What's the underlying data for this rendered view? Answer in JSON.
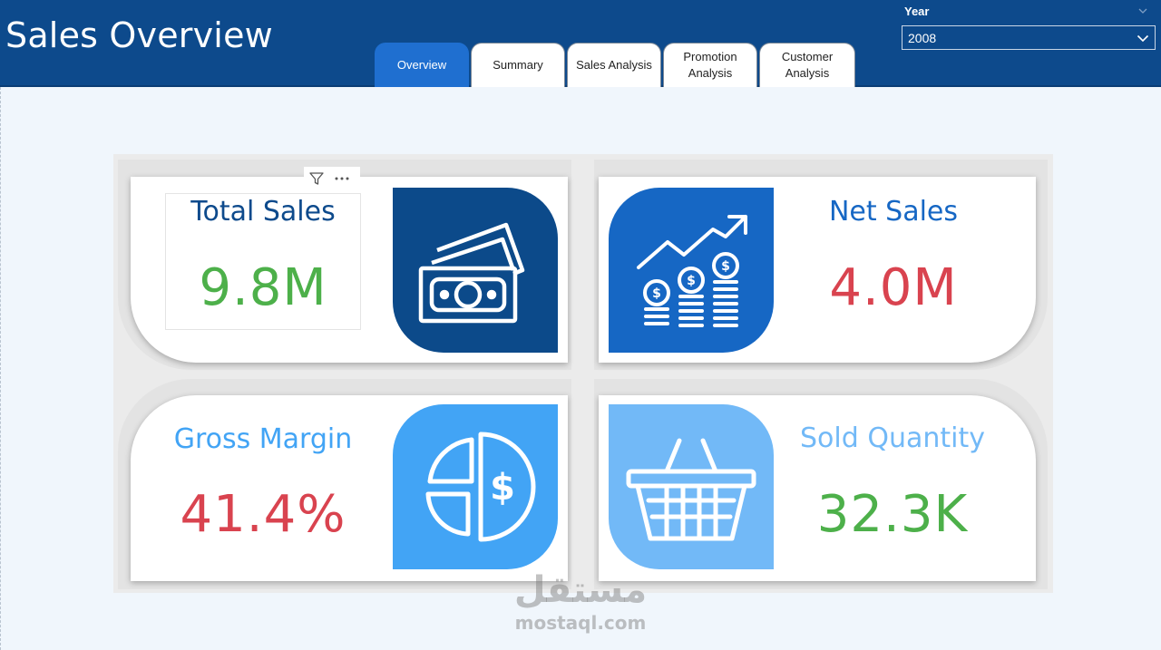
{
  "header": {
    "title": "Sales Overview",
    "tabs": [
      {
        "label": "Overview",
        "active": true
      },
      {
        "label": "Summary",
        "active": false
      },
      {
        "label": "Sales Analysis",
        "active": false
      },
      {
        "label": "Promotion\nAnalysis",
        "active": false
      },
      {
        "label": "Customer\nAnalysis",
        "active": false
      }
    ],
    "slicer": {
      "label": "Year",
      "value": "2008"
    }
  },
  "kpis": {
    "total_sales": {
      "title": "Total Sales",
      "value": "9.8M",
      "icon": "money-bills-icon"
    },
    "net_sales": {
      "title": "Net Sales",
      "value": "4.0M",
      "icon": "growth-coins-icon"
    },
    "gross_margin": {
      "title": "Gross Margin",
      "value": "41.4%",
      "icon": "pie-dollar-icon"
    },
    "sold_quantity": {
      "title": "Sold Quantity",
      "value": "32.3K",
      "icon": "basket-icon"
    }
  },
  "visual_header": {
    "filter_icon": "filter-icon",
    "more_icon": "more-options-icon"
  },
  "colors": {
    "header_bg": "#0d4a8c",
    "active_tab": "#1f6fd0",
    "title_dark": "#0d4a8c",
    "title_mid": "#1667c4",
    "title_light": "#42a4f5",
    "title_pale": "#72b9f7",
    "value_green": "#4db04a",
    "value_red": "#d9434f"
  },
  "watermark": {
    "arabic": "مستقل",
    "latin": "mostaql.com"
  }
}
